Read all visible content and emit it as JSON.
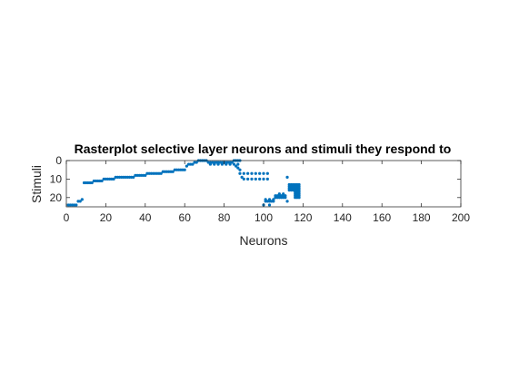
{
  "chart_data": {
    "type": "scatter",
    "title": "Rasterplot selective layer neurons and stimuli they respond to",
    "xlabel": "Neurons",
    "ylabel": "Stimuli",
    "xlim": [
      0,
      200
    ],
    "ylim": [
      0,
      25
    ],
    "y_reversed": true,
    "xticks": [
      0,
      20,
      40,
      60,
      80,
      100,
      120,
      140,
      160,
      180,
      200
    ],
    "yticks": [
      0,
      10,
      20
    ],
    "grid": false,
    "box": true,
    "marker_color": "#0072BD",
    "series": [
      {
        "points": [
          [
            1,
            24
          ],
          [
            2,
            24
          ],
          [
            3,
            24
          ],
          [
            4,
            24
          ],
          [
            5,
            24
          ],
          [
            6,
            22
          ],
          [
            7,
            22
          ],
          [
            8,
            21
          ],
          [
            9,
            12
          ],
          [
            10,
            12
          ],
          [
            11,
            12
          ],
          [
            12,
            12
          ],
          [
            13,
            12
          ],
          [
            14,
            11
          ],
          [
            15,
            11
          ],
          [
            16,
            11
          ],
          [
            17,
            11
          ],
          [
            18,
            11
          ],
          [
            19,
            10
          ],
          [
            20,
            10
          ],
          [
            21,
            10
          ],
          [
            22,
            10
          ],
          [
            23,
            10
          ],
          [
            24,
            10
          ],
          [
            25,
            9
          ],
          [
            26,
            9
          ],
          [
            27,
            9
          ],
          [
            28,
            9
          ],
          [
            29,
            9
          ],
          [
            30,
            9
          ],
          [
            31,
            9
          ],
          [
            32,
            9
          ],
          [
            33,
            9
          ],
          [
            34,
            9
          ],
          [
            35,
            8
          ],
          [
            36,
            8
          ],
          [
            37,
            8
          ],
          [
            38,
            8
          ],
          [
            39,
            8
          ],
          [
            40,
            8
          ],
          [
            41,
            7
          ],
          [
            42,
            7
          ],
          [
            43,
            7
          ],
          [
            44,
            7
          ],
          [
            45,
            7
          ],
          [
            46,
            7
          ],
          [
            47,
            7
          ],
          [
            48,
            7
          ],
          [
            49,
            6
          ],
          [
            50,
            6
          ],
          [
            51,
            6
          ],
          [
            52,
            6
          ],
          [
            53,
            6
          ],
          [
            54,
            6
          ],
          [
            55,
            5
          ],
          [
            56,
            5
          ],
          [
            57,
            5
          ],
          [
            58,
            5
          ],
          [
            59,
            5
          ],
          [
            60,
            5
          ],
          [
            61,
            3
          ],
          [
            62,
            2
          ],
          [
            63,
            2
          ],
          [
            64,
            2
          ],
          [
            65,
            1
          ],
          [
            66,
            1
          ],
          [
            67,
            0
          ],
          [
            68,
            0
          ],
          [
            69,
            0
          ],
          [
            70,
            0
          ],
          [
            71,
            0
          ],
          [
            72,
            1
          ],
          [
            73,
            1
          ],
          [
            74,
            1
          ],
          [
            75,
            1
          ],
          [
            76,
            1
          ],
          [
            77,
            1
          ],
          [
            78,
            1
          ],
          [
            79,
            1
          ],
          [
            80,
            1
          ],
          [
            81,
            1
          ],
          [
            82,
            1
          ],
          [
            83,
            1
          ],
          [
            84,
            1
          ],
          [
            85,
            0
          ],
          [
            86,
            0
          ],
          [
            87,
            0
          ],
          [
            88,
            0
          ],
          [
            73,
            2
          ],
          [
            75,
            2
          ],
          [
            77,
            2
          ],
          [
            79,
            2
          ],
          [
            81,
            2
          ],
          [
            83,
            2
          ],
          [
            85,
            2
          ],
          [
            87,
            2
          ],
          [
            86,
            3
          ],
          [
            87,
            4
          ],
          [
            88,
            5
          ],
          [
            88,
            7
          ],
          [
            90,
            7
          ],
          [
            92,
            7
          ],
          [
            94,
            7
          ],
          [
            96,
            7
          ],
          [
            98,
            7
          ],
          [
            100,
            7
          ],
          [
            102,
            7
          ],
          [
            89,
            9
          ],
          [
            90,
            10
          ],
          [
            92,
            10
          ],
          [
            94,
            10
          ],
          [
            96,
            10
          ],
          [
            98,
            10
          ],
          [
            100,
            10
          ],
          [
            102,
            10
          ],
          [
            100,
            24
          ],
          [
            101,
            22
          ],
          [
            102,
            22
          ],
          [
            103,
            22
          ],
          [
            104,
            22
          ],
          [
            105,
            22
          ],
          [
            103,
            24
          ],
          [
            101,
            21
          ],
          [
            103,
            21
          ],
          [
            105,
            21
          ],
          [
            106,
            19
          ],
          [
            107,
            19
          ],
          [
            108,
            19
          ],
          [
            109,
            19
          ],
          [
            110,
            19
          ],
          [
            111,
            19
          ],
          [
            106,
            20
          ],
          [
            107,
            20
          ],
          [
            108,
            20
          ],
          [
            109,
            20
          ],
          [
            110,
            20
          ],
          [
            111,
            20
          ],
          [
            108,
            18
          ],
          [
            110,
            18
          ],
          [
            112,
            9
          ],
          [
            112,
            22
          ],
          [
            113,
            13
          ],
          [
            114,
            13
          ],
          [
            115,
            13
          ],
          [
            116,
            13
          ],
          [
            117,
            13
          ],
          [
            118,
            13
          ],
          [
            113,
            14
          ],
          [
            114,
            14
          ],
          [
            115,
            14
          ],
          [
            116,
            14
          ],
          [
            117,
            14
          ],
          [
            118,
            14
          ],
          [
            113,
            15
          ],
          [
            114,
            15
          ],
          [
            115,
            15
          ],
          [
            116,
            15
          ],
          [
            117,
            15
          ],
          [
            118,
            15
          ],
          [
            113,
            16
          ],
          [
            114,
            16
          ],
          [
            115,
            16
          ],
          [
            116,
            16
          ],
          [
            117,
            16
          ],
          [
            118,
            16
          ],
          [
            116,
            17
          ],
          [
            117,
            17
          ],
          [
            118,
            17
          ],
          [
            116,
            18
          ],
          [
            117,
            18
          ],
          [
            118,
            18
          ],
          [
            116,
            19
          ],
          [
            117,
            19
          ],
          [
            118,
            19
          ],
          [
            116,
            20
          ],
          [
            117,
            20
          ],
          [
            118,
            20
          ]
        ]
      }
    ]
  }
}
